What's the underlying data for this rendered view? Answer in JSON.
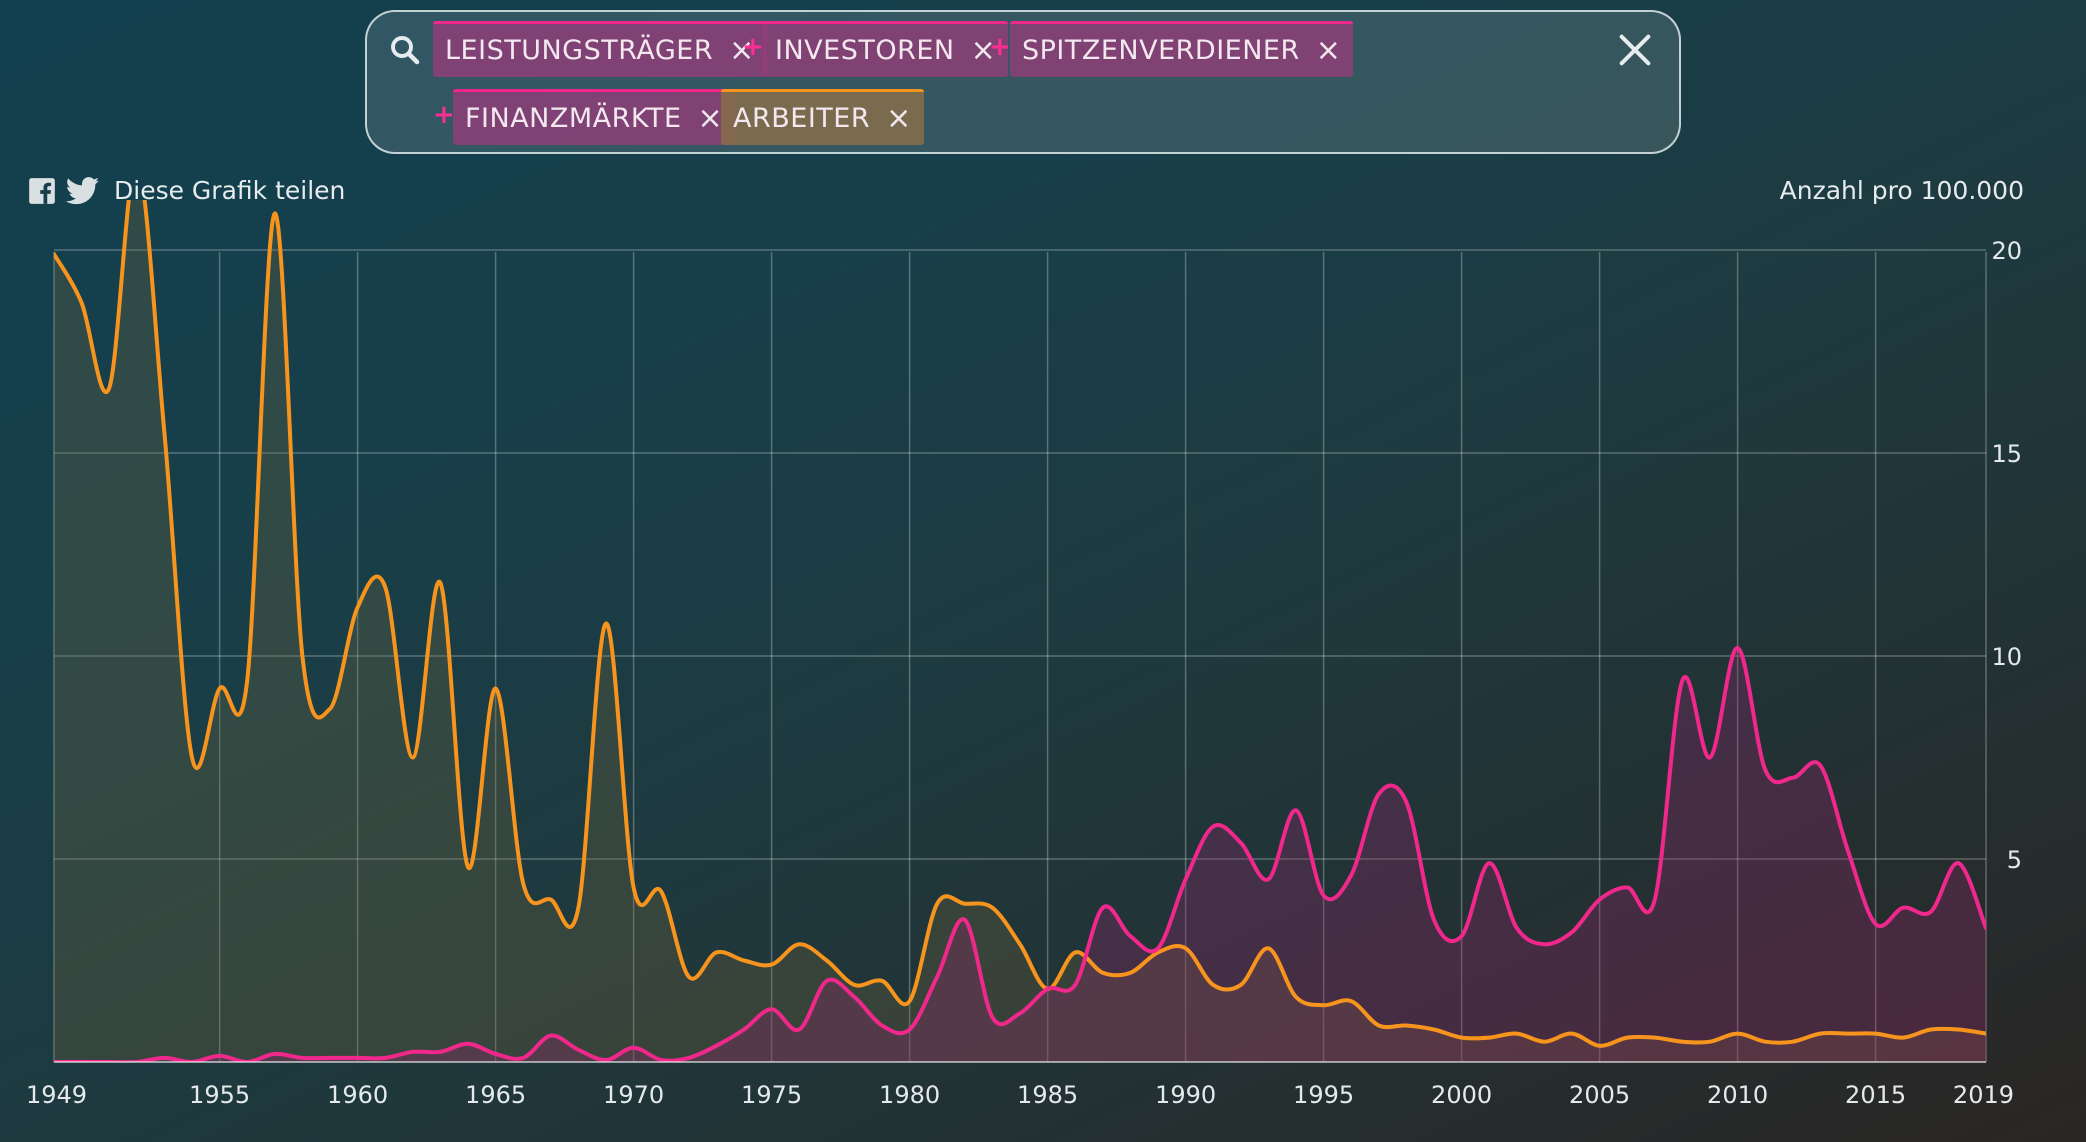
{
  "search": {
    "tags": [
      {
        "label": "LEISTUNGSTRÄGER",
        "color": "#f0288c"
      },
      {
        "label": "INVESTOREN",
        "color": "#f0288c"
      },
      {
        "label": "SPITZENVERDIENER",
        "color": "#f0288c"
      },
      {
        "label": "FINANZMÄRKTE",
        "color": "#f0288c"
      },
      {
        "label": "ARBEITER",
        "color": "#f7941d"
      }
    ],
    "remove_glyph": "×",
    "combine_glyph": "+"
  },
  "share": {
    "label": "Diese Grafik teilen",
    "icons": [
      "facebook-icon",
      "twitter-icon"
    ]
  },
  "chart_data": {
    "type": "area",
    "unit_label": "Anzahl pro 100.000",
    "xlim": [
      1949,
      2019
    ],
    "ylim": [
      0,
      22
    ],
    "y_ticks": [
      5,
      10,
      15,
      20
    ],
    "x_ticks": [
      1949,
      1955,
      1960,
      1965,
      1970,
      1975,
      1980,
      1985,
      1990,
      1995,
      2000,
      2005,
      2010,
      2015,
      2019
    ],
    "grid": true,
    "series": [
      {
        "color": "#f7941d",
        "x": [
          1949,
          1950,
          1951,
          1952,
          1953,
          1954,
          1955,
          1956,
          1957,
          1958,
          1959,
          1960,
          1961,
          1962,
          1963,
          1964,
          1965,
          1966,
          1967,
          1968,
          1969,
          1970,
          1971,
          1972,
          1973,
          1974,
          1975,
          1976,
          1977,
          1978,
          1979,
          1980,
          1981,
          1982,
          1983,
          1984,
          1985,
          1986,
          1987,
          1988,
          1989,
          1990,
          1991,
          1992,
          1993,
          1994,
          1995,
          1996,
          1997,
          1998,
          1999,
          2000,
          2001,
          2002,
          2003,
          2004,
          2005,
          2006,
          2007,
          2008,
          2009,
          2010,
          2011,
          2012,
          2013,
          2014,
          2015,
          2016,
          2017,
          2018,
          2019
        ],
        "values": [
          19.9,
          18.7,
          16.6,
          22.2,
          15.5,
          7.5,
          9.2,
          9.4,
          20.9,
          10.0,
          8.7,
          11.2,
          11.7,
          7.5,
          11.8,
          4.8,
          9.2,
          4.4,
          4.0,
          3.8,
          10.8,
          4.3,
          4.2,
          2.1,
          2.7,
          2.5,
          2.4,
          2.9,
          2.5,
          1.9,
          2.0,
          1.5,
          3.9,
          3.9,
          3.8,
          2.9,
          1.8,
          2.7,
          2.2,
          2.2,
          2.7,
          2.8,
          1.9,
          1.9,
          2.8,
          1.6,
          1.4,
          1.5,
          0.9,
          0.9,
          0.8,
          0.6,
          0.6,
          0.7,
          0.5,
          0.7,
          0.4,
          0.6,
          0.6,
          0.5,
          0.5,
          0.7,
          0.5,
          0.5,
          0.7,
          0.7,
          0.7,
          0.6,
          0.8,
          0.8,
          0.7
        ]
      },
      {
        "color": "#f0288c",
        "x": [
          1949,
          1950,
          1951,
          1952,
          1953,
          1954,
          1955,
          1956,
          1957,
          1958,
          1959,
          1960,
          1961,
          1962,
          1963,
          1964,
          1965,
          1966,
          1967,
          1968,
          1969,
          1970,
          1971,
          1972,
          1973,
          1974,
          1975,
          1976,
          1977,
          1978,
          1979,
          1980,
          1981,
          1982,
          1983,
          1984,
          1985,
          1986,
          1987,
          1988,
          1989,
          1990,
          1991,
          1992,
          1993,
          1994,
          1995,
          1996,
          1997,
          1998,
          1999,
          2000,
          2001,
          2002,
          2003,
          2004,
          2005,
          2006,
          2007,
          2008,
          2009,
          2010,
          2011,
          2012,
          2013,
          2014,
          2015,
          2016,
          2017,
          2018,
          2019
        ],
        "values": [
          0.0,
          0.0,
          0.0,
          0.0,
          0.1,
          0.0,
          0.15,
          0.0,
          0.2,
          0.1,
          0.1,
          0.1,
          0.1,
          0.25,
          0.25,
          0.45,
          0.2,
          0.1,
          0.65,
          0.3,
          0.05,
          0.35,
          0.05,
          0.1,
          0.4,
          0.8,
          1.3,
          0.8,
          2.0,
          1.6,
          0.9,
          0.8,
          2.1,
          3.5,
          1.1,
          1.2,
          1.8,
          1.9,
          3.8,
          3.1,
          2.8,
          4.5,
          5.8,
          5.4,
          4.5,
          6.2,
          4.1,
          4.6,
          6.6,
          6.4,
          3.5,
          3.1,
          4.9,
          3.3,
          2.9,
          3.2,
          4.0,
          4.3,
          4.0,
          9.4,
          7.5,
          10.2,
          7.2,
          7.0,
          7.3,
          5.2,
          3.4,
          3.8,
          3.7,
          4.9,
          3.3
        ]
      }
    ]
  }
}
